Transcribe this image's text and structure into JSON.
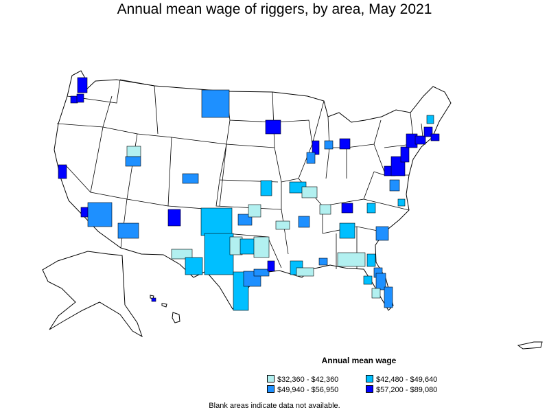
{
  "title": "Annual mean wage of riggers, by area, May 2021",
  "legend": {
    "title": "Annual mean wage",
    "items": [
      {
        "label": "$32,360 - $42,360",
        "color": "#b2f0f0"
      },
      {
        "label": "$42,480 - $49,640",
        "color": "#00bfff"
      },
      {
        "label": "$49,940 - $56,950",
        "color": "#1e90ff"
      },
      {
        "label": "$57,200 - $89,080",
        "color": "#0000ff"
      }
    ]
  },
  "footnote": "Blank areas indicate data not available.",
  "colors": {
    "outline": "#000000",
    "land": "#ffffff"
  }
}
